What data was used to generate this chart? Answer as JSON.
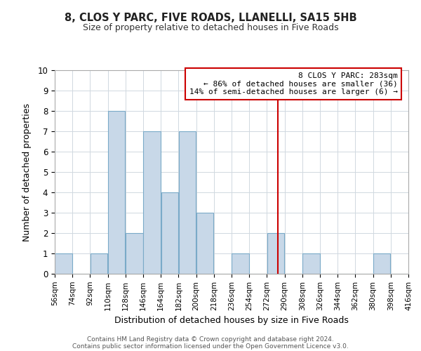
{
  "title": "8, CLOS Y PARC, FIVE ROADS, LLANELLI, SA15 5HB",
  "subtitle": "Size of property relative to detached houses in Five Roads",
  "xlabel": "Distribution of detached houses by size in Five Roads",
  "ylabel": "Number of detached properties",
  "bin_edges": [
    56,
    74,
    92,
    110,
    128,
    146,
    164,
    182,
    200,
    218,
    236,
    254,
    272,
    290,
    308,
    326,
    344,
    362,
    380,
    398,
    416
  ],
  "bar_heights": [
    1,
    0,
    1,
    8,
    2,
    7,
    4,
    7,
    3,
    0,
    1,
    0,
    2,
    0,
    1,
    0,
    0,
    0,
    1,
    0
  ],
  "bar_color": "#c8d8e8",
  "bar_edgecolor": "#7aaac8",
  "grid_color": "#d0d8e0",
  "vline_x": 283,
  "vline_color": "#cc0000",
  "ylim": [
    0,
    10
  ],
  "yticks": [
    0,
    1,
    2,
    3,
    4,
    5,
    6,
    7,
    8,
    9,
    10
  ],
  "annotation_title": "8 CLOS Y PARC: 283sqm",
  "annotation_line1": "← 86% of detached houses are smaller (36)",
  "annotation_line2": "14% of semi-detached houses are larger (6) →",
  "annotation_box_color": "#ffffff",
  "annotation_box_edgecolor": "#cc0000",
  "footnote1": "Contains HM Land Registry data © Crown copyright and database right 2024.",
  "footnote2": "Contains public sector information licensed under the Open Government Licence v3.0.",
  "background_color": "#ffffff"
}
